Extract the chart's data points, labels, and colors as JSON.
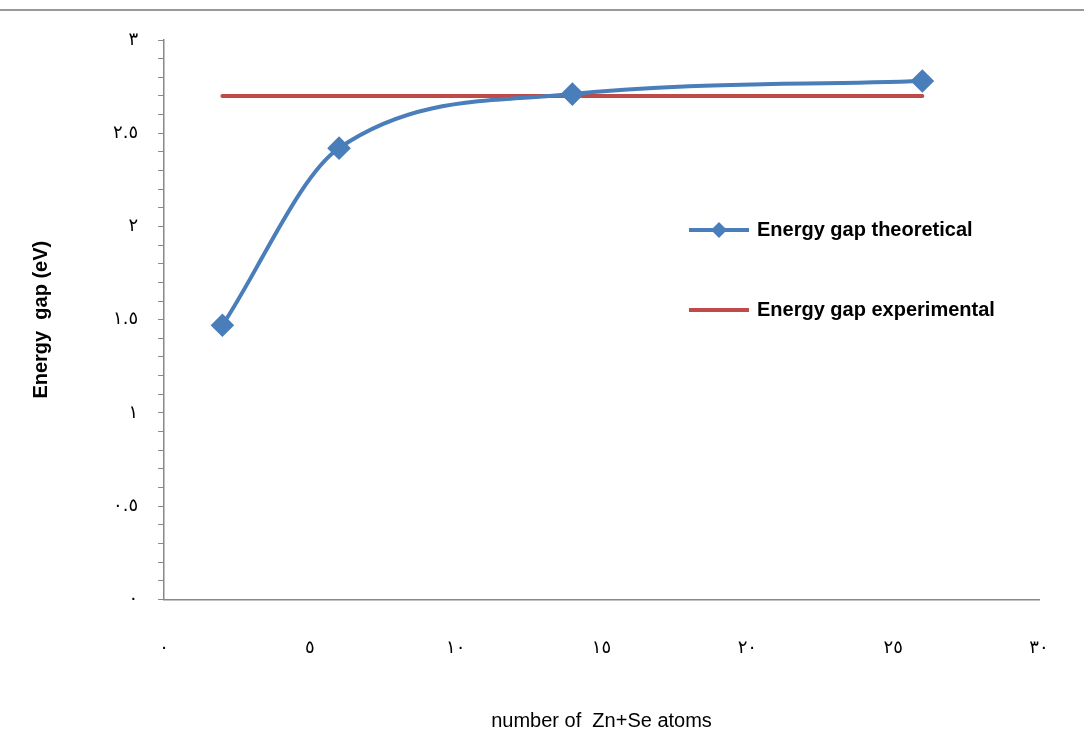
{
  "chart_data": {
    "type": "line",
    "xlabel": "number of  Zn+Se atoms",
    "ylabel": "Energy  gap (eV)",
    "xlim": [
      0,
      30
    ],
    "xticks": [
      {
        "value": 0,
        "label": "٠"
      },
      {
        "value": 5,
        "label": "٥"
      },
      {
        "value": 10,
        "label": "١٠"
      },
      {
        "value": 15,
        "label": "١٥"
      },
      {
        "value": 20,
        "label": "٢٠"
      },
      {
        "value": 25,
        "label": "٢٥"
      },
      {
        "value": 30,
        "label": "٣٠"
      }
    ],
    "ylim": [
      0,
      3
    ],
    "yticks": [
      {
        "value": 0,
        "label": "٠"
      },
      {
        "value": 0.1,
        "label": null
      },
      {
        "value": 0.2,
        "label": null
      },
      {
        "value": 0.3,
        "label": null
      },
      {
        "value": 0.4,
        "label": null
      },
      {
        "value": 0.5,
        "label": "٠.٥"
      },
      {
        "value": 0.6,
        "label": null
      },
      {
        "value": 0.7,
        "label": null
      },
      {
        "value": 0.8,
        "label": null
      },
      {
        "value": 0.9,
        "label": null
      },
      {
        "value": 1,
        "label": "١"
      },
      {
        "value": 1.1,
        "label": null
      },
      {
        "value": 1.2,
        "label": null
      },
      {
        "value": 1.3,
        "label": null
      },
      {
        "value": 1.4,
        "label": null
      },
      {
        "value": 1.5,
        "label": "١.٥"
      },
      {
        "value": 1.6,
        "label": null
      },
      {
        "value": 1.7,
        "label": null
      },
      {
        "value": 1.8,
        "label": null
      },
      {
        "value": 1.9,
        "label": null
      },
      {
        "value": 2,
        "label": "٢"
      },
      {
        "value": 2.1,
        "label": null
      },
      {
        "value": 2.2,
        "label": null
      },
      {
        "value": 2.3,
        "label": null
      },
      {
        "value": 2.4,
        "label": null
      },
      {
        "value": 2.5,
        "label": "٢.٥"
      },
      {
        "value": 2.6,
        "label": null
      },
      {
        "value": 2.7,
        "label": null
      },
      {
        "value": 2.8,
        "label": null
      },
      {
        "value": 2.9,
        "label": null
      },
      {
        "value": 3,
        "label": "٣"
      }
    ],
    "grid": false,
    "legend": "right",
    "line_style": "solid",
    "series": [
      {
        "name": "Energy gap theoretical",
        "color": "#4a7ebb",
        "marker": "diamond",
        "x": [
          2,
          6,
          14,
          26
        ],
        "values": [
          1.47,
          2.42,
          2.71,
          2.78
        ]
      },
      {
        "name": "Energy gap experimental",
        "color": "#be4b48",
        "marker": "none",
        "x": [
          2,
          26
        ],
        "values": [
          2.7,
          2.7
        ]
      }
    ]
  }
}
